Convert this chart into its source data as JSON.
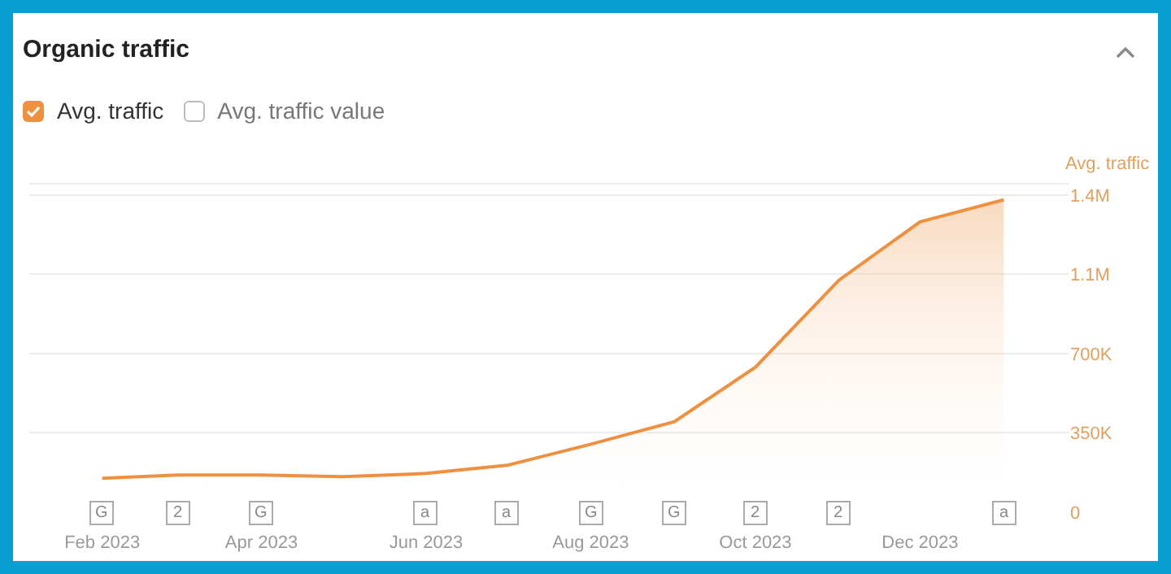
{
  "chart_data": {
    "type": "area",
    "title": "Organic traffic",
    "ylabel": "Avg. traffic",
    "legend": "top left",
    "annotations": [
      "Avg. traffic value",
      {
        "text": "G",
        "x": "2023-02-01",
        "y": 0
      },
      {
        "text": "2",
        "x": "2023-03-01",
        "y": 0
      },
      {
        "text": "G",
        "x": "2023-04-01",
        "y": 0
      },
      {
        "text": "a",
        "x": "2023-06-01",
        "y": 0
      },
      {
        "text": "a",
        "x": "2023-07-01",
        "y": 0
      },
      {
        "text": "G",
        "x": "2023-08-01",
        "y": 0
      },
      {
        "text": "G",
        "x": "2023-09-01",
        "y": 0
      },
      {
        "text": "2",
        "x": "2023-10-01",
        "y": 0
      },
      {
        "text": "2",
        "x": "2023-11-01",
        "y": 0
      },
      {
        "text": "a",
        "x": "2024-01-01",
        "y": 0
      }
    ],
    "x": [
      "2023-02-01",
      "2023-03-01",
      "2023-04-01",
      "2023-05-01",
      "2023-06-01",
      "2023-07-01",
      "2023-08-01",
      "2023-09-01",
      "2023-10-01",
      "2023-11-01",
      "2023-12-01",
      "2024-01-01"
    ],
    "series": [
      {
        "name": "Avg. traffic",
        "color": "#ee9040",
        "values": [
          150000,
          164000,
          164000,
          157000,
          171000,
          207000,
          300000,
          400000,
          640000,
          1025000,
          1282000,
          1379000
        ]
      }
    ],
    "xlim": [
      "2023-01-05",
      "2024-01-25"
    ],
    "xticks": [
      {
        "value": "2023-02-01",
        "label": "Feb 2023"
      },
      {
        "value": "2023-04-01",
        "label": "Apr 2023"
      },
      {
        "value": "2023-06-01",
        "label": "Jun 2023"
      },
      {
        "value": "2023-08-01",
        "label": "Aug 2023"
      },
      {
        "value": "2023-10-01",
        "label": "Oct 2023"
      },
      {
        "value": "2023-12-01",
        "label": "Dec 2023"
      }
    ],
    "ylim": [
      0,
      1450000
    ],
    "yticks": [
      0,
      {
        "value": 350000,
        "label": "350K"
      },
      {
        "value": 700000,
        "label": "700K"
      },
      {
        "value": 1050000,
        "label": "1.1M"
      },
      {
        "value": 1400000,
        "label": "1.4M"
      }
    ],
    "grid": "y"
  }
}
